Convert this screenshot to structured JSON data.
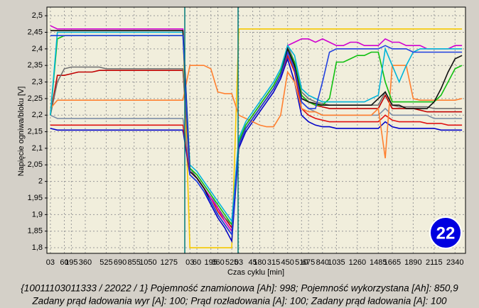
{
  "chart_data": {
    "type": "line",
    "y_label": "Napięcie ogniwa/bloku [V]",
    "x_label": "Czas cyklu [min]",
    "annotation": "22",
    "footer": [
      "{10011103011333 / 22022 / 1} Pojemność znamionowa [Ah]: 998;  Pojemność wykorzystana [Ah]: 850,9",
      "Zadany prąd ładowania wyr [A]: 100;  Prąd rozładowania [A]: 100;  Zadany prąd ładowania [A]: 100"
    ],
    "grid": true,
    "ylim": [
      1.783,
      2.526
    ],
    "yticks": [
      {
        "value": 1.8,
        "label": "1,8"
      },
      {
        "value": 1.85,
        "label": "1,85"
      },
      {
        "value": 1.9,
        "label": "1,9"
      },
      {
        "value": 1.95,
        "label": "1,95"
      },
      2,
      {
        "value": 2.05,
        "label": "2,05"
      },
      {
        "value": 2.1,
        "label": "2,1"
      },
      {
        "value": 2.15,
        "label": "2,15"
      },
      {
        "value": 2.2,
        "label": "2,2"
      },
      {
        "value": 2.25,
        "label": "2,25"
      },
      {
        "value": 2.3,
        "label": "2,3"
      },
      {
        "value": 2.35,
        "label": "2,35"
      },
      {
        "value": 2.4,
        "label": "2,4"
      },
      {
        "value": 2.45,
        "label": "2,45"
      },
      {
        "value": 2.5,
        "label": "2,5"
      }
    ],
    "categories": [
      "03",
      null,
      "60",
      "195",
      null,
      "360",
      null,
      null,
      "525",
      null,
      "690",
      null,
      "855",
      null,
      "1050",
      null,
      null,
      "1275",
      null,
      null,
      "03",
      "60",
      null,
      "195",
      "360",
      null,
      "525",
      "03",
      null,
      "45",
      "180",
      null,
      "315",
      null,
      "450",
      null,
      "510",
      "675",
      null,
      "840",
      null,
      "1035",
      null,
      null,
      "1260",
      null,
      null,
      "1485",
      null,
      "1665",
      null,
      null,
      "1890",
      null,
      null,
      "2115",
      null,
      null,
      "2340",
      null
    ],
    "series": [
      {
        "color": "#f5c800",
        "values": [
          2.455,
          2.455,
          2.455,
          2.455,
          2.455,
          2.455,
          2.455,
          2.455,
          2.455,
          2.455,
          2.455,
          2.455,
          2.455,
          2.455,
          2.455,
          2.455,
          2.455,
          2.455,
          2.455,
          2.455,
          1.8,
          1.8,
          1.8,
          1.8,
          1.8,
          1.8,
          1.8,
          2.46,
          2.46,
          2.46,
          2.46,
          2.46,
          2.46,
          2.46,
          2.46,
          2.46,
          2.46,
          2.46,
          2.46,
          2.46,
          2.46,
          2.46,
          2.46,
          2.46,
          2.46,
          2.46,
          2.46,
          2.46,
          2.46,
          2.46,
          2.46,
          2.46,
          2.46,
          2.46,
          2.46,
          2.46,
          2.46,
          2.46,
          2.46,
          2.46
        ]
      },
      {
        "color": "#0000c8",
        "values": [
          2.16,
          2.155,
          2.155,
          2.155,
          2.155,
          2.155,
          2.155,
          2.155,
          2.155,
          2.155,
          2.155,
          2.155,
          2.155,
          2.155,
          2.155,
          2.155,
          2.155,
          2.155,
          2.155,
          2.155,
          2.02,
          2.0,
          1.97,
          1.93,
          1.89,
          1.86,
          1.82,
          2.1,
          2.15,
          2.18,
          2.21,
          2.24,
          2.27,
          2.31,
          2.37,
          2.3,
          2.2,
          2.18,
          2.17,
          2.165,
          2.165,
          2.16,
          2.16,
          2.16,
          2.16,
          2.16,
          2.16,
          2.16,
          2.18,
          2.165,
          2.16,
          2.16,
          2.16,
          2.16,
          2.16,
          2.16,
          2.155,
          2.155,
          2.155,
          2.155
        ]
      },
      {
        "color": "#e01010",
        "values": [
          2.17,
          2.17,
          2.17,
          2.17,
          2.17,
          2.17,
          2.17,
          2.17,
          2.17,
          2.17,
          2.17,
          2.17,
          2.17,
          2.17,
          2.17,
          2.17,
          2.17,
          2.17,
          2.17,
          2.17,
          2.03,
          2.01,
          1.98,
          1.95,
          1.91,
          1.88,
          1.85,
          2.11,
          2.16,
          2.19,
          2.22,
          2.25,
          2.28,
          2.32,
          2.38,
          2.33,
          2.22,
          2.2,
          2.19,
          2.185,
          2.18,
          2.18,
          2.18,
          2.18,
          2.18,
          2.18,
          2.18,
          2.18,
          2.2,
          2.185,
          2.18,
          2.18,
          2.18,
          2.18,
          2.175,
          2.175,
          2.175,
          2.17,
          2.17,
          2.17
        ]
      },
      {
        "color": "#7f8fa6",
        "values": [
          2.2,
          2.19,
          2.19,
          2.19,
          2.19,
          2.19,
          2.19,
          2.19,
          2.19,
          2.19,
          2.19,
          2.19,
          2.19,
          2.19,
          2.19,
          2.19,
          2.19,
          2.19,
          2.19,
          2.19,
          2.04,
          2.02,
          1.99,
          1.96,
          1.92,
          1.89,
          1.86,
          2.12,
          2.17,
          2.2,
          2.23,
          2.26,
          2.29,
          2.33,
          2.39,
          2.34,
          2.24,
          2.22,
          2.21,
          2.2,
          2.2,
          2.2,
          2.2,
          2.2,
          2.2,
          2.2,
          2.2,
          2.2,
          2.22,
          2.2,
          2.2,
          2.2,
          2.2,
          2.2,
          2.2,
          2.19,
          2.19,
          2.19,
          2.19,
          2.19
        ]
      },
      {
        "color": "#c00000",
        "values": [
          2.2,
          2.32,
          2.32,
          2.325,
          2.33,
          2.33,
          2.33,
          2.335,
          2.335,
          2.335,
          2.335,
          2.335,
          2.335,
          2.335,
          2.335,
          2.335,
          2.335,
          2.335,
          2.335,
          2.335,
          2.03,
          2.01,
          1.98,
          1.95,
          1.92,
          1.89,
          1.86,
          2.11,
          2.16,
          2.19,
          2.22,
          2.25,
          2.28,
          2.32,
          2.4,
          2.35,
          2.26,
          2.24,
          2.23,
          2.225,
          2.22,
          2.22,
          2.22,
          2.22,
          2.22,
          2.22,
          2.22,
          2.22,
          2.26,
          2.22,
          2.22,
          2.22,
          2.22,
          2.215,
          2.21,
          2.21,
          2.21,
          2.21,
          2.21,
          2.21
        ]
      },
      {
        "color": "#707070",
        "values": [
          2.2,
          2.3,
          2.34,
          2.345,
          2.345,
          2.345,
          2.345,
          2.345,
          2.34,
          2.34,
          2.34,
          2.34,
          2.34,
          2.34,
          2.34,
          2.34,
          2.34,
          2.34,
          2.34,
          2.34,
          2.04,
          2.01,
          1.98,
          1.95,
          1.92,
          1.89,
          1.87,
          2.12,
          2.17,
          2.2,
          2.23,
          2.26,
          2.29,
          2.33,
          2.41,
          2.36,
          2.27,
          2.25,
          2.24,
          2.235,
          2.23,
          2.23,
          2.23,
          2.23,
          2.23,
          2.23,
          2.23,
          2.23,
          2.27,
          2.23,
          2.225,
          2.225,
          2.225,
          2.225,
          2.225,
          2.22,
          2.22,
          2.22,
          2.22,
          2.22
        ]
      },
      {
        "color": "#ff8030",
        "values": [
          2.22,
          2.245,
          2.245,
          2.245,
          2.245,
          2.245,
          2.245,
          2.245,
          2.245,
          2.245,
          2.245,
          2.245,
          2.245,
          2.245,
          2.245,
          2.245,
          2.245,
          2.245,
          2.245,
          2.245,
          2.35,
          2.35,
          2.35,
          2.34,
          2.27,
          2.265,
          2.265,
          2.2,
          2.19,
          2.18,
          2.17,
          2.165,
          2.165,
          2.2,
          2.33,
          2.3,
          2.22,
          2.21,
          2.21,
          2.2,
          2.2,
          2.2,
          2.2,
          2.2,
          2.2,
          2.2,
          2.2,
          2.22,
          2.07,
          2.35,
          2.35,
          2.35,
          2.25,
          2.245,
          2.245,
          2.245,
          2.245,
          2.245,
          2.245,
          2.25
        ]
      },
      {
        "color": "#d000d0",
        "values": [
          2.47,
          2.46,
          2.46,
          2.46,
          2.46,
          2.46,
          2.46,
          2.46,
          2.46,
          2.46,
          2.46,
          2.46,
          2.46,
          2.46,
          2.46,
          2.46,
          2.46,
          2.46,
          2.46,
          2.46,
          2.03,
          2.01,
          1.98,
          1.95,
          1.92,
          1.88,
          1.85,
          2.11,
          2.16,
          2.19,
          2.22,
          2.25,
          2.28,
          2.32,
          2.41,
          2.42,
          2.43,
          2.43,
          2.42,
          2.43,
          2.42,
          2.41,
          2.41,
          2.42,
          2.42,
          2.41,
          2.41,
          2.41,
          2.43,
          2.42,
          2.42,
          2.41,
          2.41,
          2.41,
          2.4,
          2.4,
          2.4,
          2.4,
          2.41,
          2.41
        ]
      },
      {
        "color": "#10c010",
        "values": [
          2.2,
          2.43,
          2.44,
          2.44,
          2.44,
          2.44,
          2.44,
          2.44,
          2.44,
          2.44,
          2.44,
          2.44,
          2.44,
          2.44,
          2.44,
          2.44,
          2.44,
          2.44,
          2.44,
          2.44,
          2.04,
          2.02,
          1.99,
          1.96,
          1.93,
          1.9,
          1.87,
          2.12,
          2.17,
          2.2,
          2.23,
          2.26,
          2.29,
          2.33,
          2.4,
          2.36,
          2.26,
          2.24,
          2.23,
          2.23,
          2.25,
          2.36,
          2.36,
          2.37,
          2.38,
          2.38,
          2.39,
          2.39,
          2.3,
          2.24,
          2.24,
          2.24,
          2.24,
          2.24,
          2.24,
          2.24,
          2.26,
          2.3,
          2.34,
          2.35
        ]
      },
      {
        "color": "#00b4d8",
        "values": [
          2.2,
          2.45,
          2.45,
          2.45,
          2.45,
          2.45,
          2.45,
          2.45,
          2.45,
          2.45,
          2.45,
          2.45,
          2.45,
          2.45,
          2.45,
          2.45,
          2.45,
          2.45,
          2.45,
          2.45,
          2.05,
          2.03,
          2.0,
          1.97,
          1.94,
          1.91,
          1.88,
          2.13,
          2.18,
          2.21,
          2.24,
          2.27,
          2.3,
          2.34,
          2.41,
          2.38,
          2.28,
          2.26,
          2.25,
          2.24,
          2.24,
          2.24,
          2.24,
          2.24,
          2.24,
          2.24,
          2.25,
          2.26,
          2.4,
          2.35,
          2.3,
          2.35,
          2.39,
          2.4,
          2.4,
          2.4,
          2.4,
          2.4,
          2.4,
          2.4
        ]
      },
      {
        "color": "#101010",
        "values": [
          2.455,
          2.455,
          2.455,
          2.455,
          2.455,
          2.455,
          2.455,
          2.455,
          2.455,
          2.455,
          2.455,
          2.455,
          2.455,
          2.455,
          2.455,
          2.455,
          2.455,
          2.455,
          2.455,
          2.455,
          2.03,
          2.01,
          1.98,
          1.94,
          1.9,
          1.87,
          1.84,
          2.11,
          2.16,
          2.19,
          2.22,
          2.25,
          2.28,
          2.32,
          2.4,
          2.35,
          2.25,
          2.24,
          2.235,
          2.23,
          2.23,
          2.23,
          2.23,
          2.23,
          2.23,
          2.23,
          2.23,
          2.25,
          2.27,
          2.23,
          2.23,
          2.22,
          2.22,
          2.22,
          2.22,
          2.24,
          2.28,
          2.33,
          2.37,
          2.38
        ]
      },
      {
        "color": "#2040e0",
        "values": [
          2.44,
          2.44,
          2.44,
          2.44,
          2.44,
          2.44,
          2.44,
          2.44,
          2.44,
          2.44,
          2.44,
          2.44,
          2.44,
          2.44,
          2.44,
          2.44,
          2.44,
          2.44,
          2.44,
          2.44,
          2.02,
          2.0,
          1.97,
          1.94,
          1.9,
          1.87,
          1.84,
          2.11,
          2.16,
          2.19,
          2.22,
          2.25,
          2.28,
          2.32,
          2.39,
          2.34,
          2.24,
          2.22,
          2.22,
          2.3,
          2.39,
          2.4,
          2.4,
          2.4,
          2.4,
          2.4,
          2.4,
          2.4,
          2.41,
          2.4,
          2.4,
          2.4,
          2.39,
          2.39,
          2.39,
          2.39,
          2.39,
          2.39,
          2.39,
          2.39
        ]
      }
    ]
  }
}
